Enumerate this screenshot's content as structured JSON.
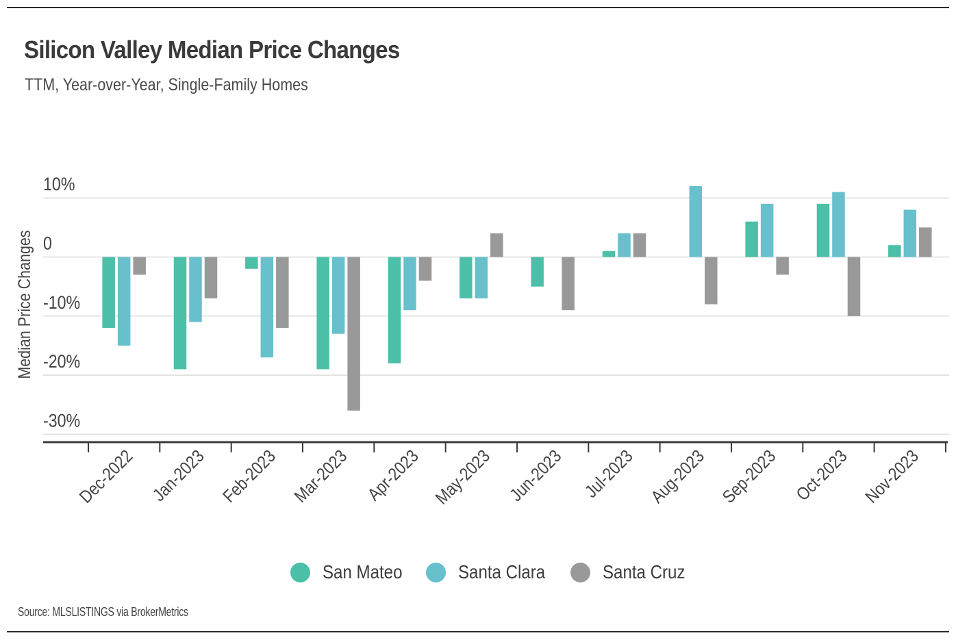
{
  "header": {
    "title": "Silicon Valley Median Price Changes",
    "subtitle": "TTM, Year-over-Year, Single-Family Homes"
  },
  "footer": {
    "source": "Source:  MLSLISTINGS via BrokerMetrics"
  },
  "legend": [
    {
      "label": "San Mateo",
      "color": "#4bbfa8"
    },
    {
      "label": "Santa Clara",
      "color": "#67c0cc"
    },
    {
      "label": "Santa Cruz",
      "color": "#999999"
    }
  ],
  "chart_data": {
    "type": "bar",
    "title": "Silicon Valley Median Price Changes",
    "subtitle": "TTM, Year-over-Year, Single-Family Homes",
    "xlabel": "",
    "ylabel": "Median Price Changes",
    "ylim": [
      -30,
      10
    ],
    "yticks": [
      10,
      0,
      -10,
      -20,
      -30
    ],
    "ytick_labels": [
      "10%",
      "0",
      "-10%",
      "-20%",
      "-30%"
    ],
    "grid": true,
    "legend_position": "bottom-center",
    "categories": [
      "Dec-2022",
      "Jan-2023",
      "Feb-2023",
      "Mar-2023",
      "Apr-2023",
      "May-2023",
      "Jun-2023",
      "Jul-2023",
      "Aug-2023",
      "Sep-2023",
      "Oct-2023",
      "Nov-2023"
    ],
    "series": [
      {
        "name": "San Mateo",
        "color": "#4bbfa8",
        "values": [
          -12,
          -19,
          -2,
          -19,
          -18,
          -7,
          -5,
          1,
          0,
          6,
          9,
          2
        ]
      },
      {
        "name": "Santa Clara",
        "color": "#67c0cc",
        "values": [
          -15,
          -11,
          -17,
          -13,
          -9,
          -7,
          0,
          4,
          12,
          9,
          11,
          8
        ]
      },
      {
        "name": "Santa Cruz",
        "color": "#999999",
        "values": [
          -3,
          -7,
          -12,
          -26,
          -4,
          4,
          -9,
          4,
          -8,
          -3,
          -10,
          5
        ]
      }
    ],
    "source": "Source:  MLSLISTINGS via BrokerMetrics"
  }
}
